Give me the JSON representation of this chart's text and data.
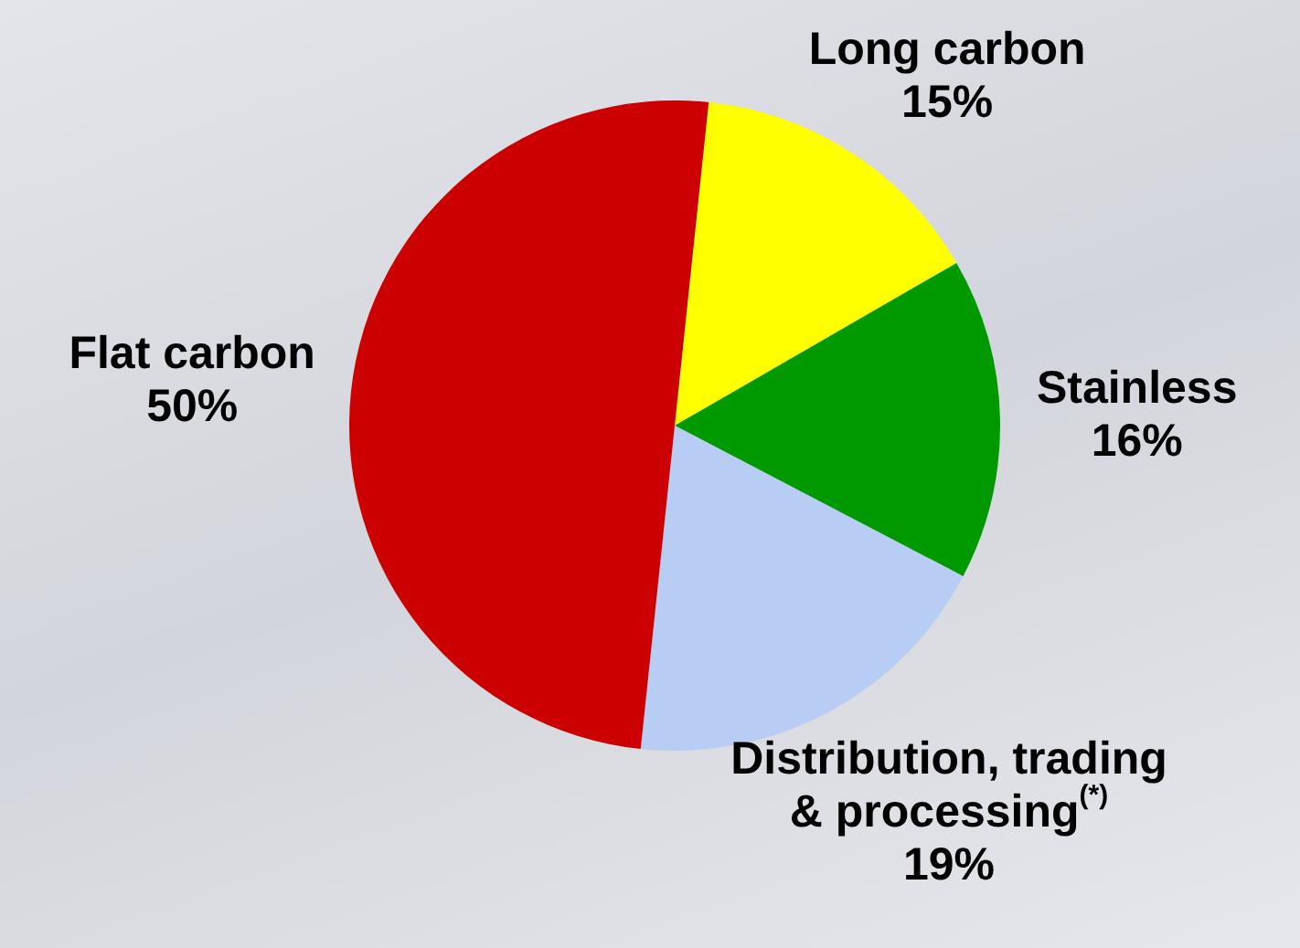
{
  "chart_data": {
    "type": "pie",
    "categories": [
      "Long carbon",
      "Stainless",
      "Distribution, trading & processing$^{(*)}$",
      "Flat carbon"
    ],
    "values": [
      15,
      16,
      19,
      50
    ],
    "colors": [
      "#ffff00",
      "#009900",
      "#b7cdf3",
      "#cc0000"
    ],
    "value_labels": [
      "15%",
      "16%",
      "19%",
      "50%"
    ],
    "legend": false
  }
}
